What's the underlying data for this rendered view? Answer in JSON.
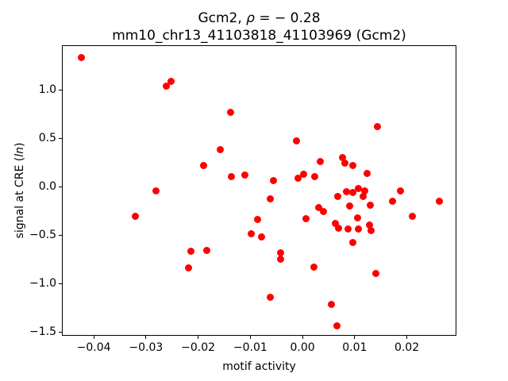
{
  "chart_data": {
    "type": "scatter",
    "title": {
      "prefix": "Gcm2, ",
      "rho": "ρ",
      "rest": " = − 0.28",
      "line2": "mm10_chr13_41103818_41103969 (Gcm2)"
    },
    "xlabel": "motif activity",
    "ylabel": {
      "prefix": "signal at CRE (",
      "italic": "ln",
      "suffix": ")"
    },
    "xlim": [
      -0.0461,
      0.0295
    ],
    "ylim": [
      -1.54,
      1.46
    ],
    "x_ticks": [
      -0.04,
      -0.03,
      -0.02,
      -0.01,
      0.0,
      0.01,
      0.02
    ],
    "y_ticks": [
      -1.5,
      -1.0,
      -0.5,
      0.0,
      0.5,
      1.0
    ],
    "grid": false,
    "legend": null,
    "marker_color": "#ff0000",
    "points": [
      [
        -0.0423,
        1.33
      ],
      [
        -0.0261,
        1.04
      ],
      [
        -0.0252,
        1.09
      ],
      [
        -0.0281,
        -0.04
      ],
      [
        -0.0321,
        -0.31
      ],
      [
        -0.0214,
        -0.67
      ],
      [
        -0.0219,
        -0.84
      ],
      [
        -0.0184,
        -0.66
      ],
      [
        -0.0138,
        0.77
      ],
      [
        -0.0158,
        0.38
      ],
      [
        -0.019,
        0.22
      ],
      [
        -0.0137,
        0.1
      ],
      [
        -0.0111,
        0.12
      ],
      [
        -0.0098,
        -0.49
      ],
      [
        -0.0079,
        -0.52
      ],
      [
        -0.0086,
        -0.34
      ],
      [
        -0.0062,
        -0.13
      ],
      [
        -0.0056,
        0.06
      ],
      [
        -0.0061,
        -1.14
      ],
      [
        -0.0042,
        -0.68
      ],
      [
        -0.0042,
        -0.75
      ],
      [
        -0.0011,
        0.47
      ],
      [
        -0.0009,
        0.09
      ],
      [
        0.0002,
        0.13
      ],
      [
        0.0024,
        0.1
      ],
      [
        0.0034,
        0.26
      ],
      [
        0.0007,
        -0.33
      ],
      [
        0.0031,
        -0.22
      ],
      [
        0.004,
        -0.26
      ],
      [
        0.0022,
        -0.83
      ],
      [
        0.0056,
        -1.22
      ],
      [
        0.0066,
        -1.44
      ],
      [
        0.0063,
        -0.38
      ],
      [
        0.0069,
        -0.43
      ],
      [
        0.0067,
        -0.1
      ],
      [
        0.0076,
        0.3
      ],
      [
        0.0082,
        0.24
      ],
      [
        0.0097,
        0.22
      ],
      [
        0.0084,
        -0.05
      ],
      [
        0.0097,
        -0.06
      ],
      [
        0.0091,
        -0.2
      ],
      [
        0.0087,
        -0.44
      ],
      [
        0.0097,
        -0.58
      ],
      [
        0.0105,
        -0.32
      ],
      [
        0.0107,
        -0.02
      ],
      [
        0.0107,
        -0.44
      ],
      [
        0.0116,
        -0.1
      ],
      [
        0.0119,
        -0.04
      ],
      [
        0.0124,
        0.14
      ],
      [
        0.0128,
        -0.4
      ],
      [
        0.0131,
        -0.45
      ],
      [
        0.013,
        -0.19
      ],
      [
        0.0143,
        0.62
      ],
      [
        0.0141,
        -0.9
      ],
      [
        0.0172,
        -0.15
      ],
      [
        0.0188,
        -0.04
      ],
      [
        0.021,
        -0.31
      ],
      [
        0.0262,
        -0.15
      ]
    ]
  }
}
